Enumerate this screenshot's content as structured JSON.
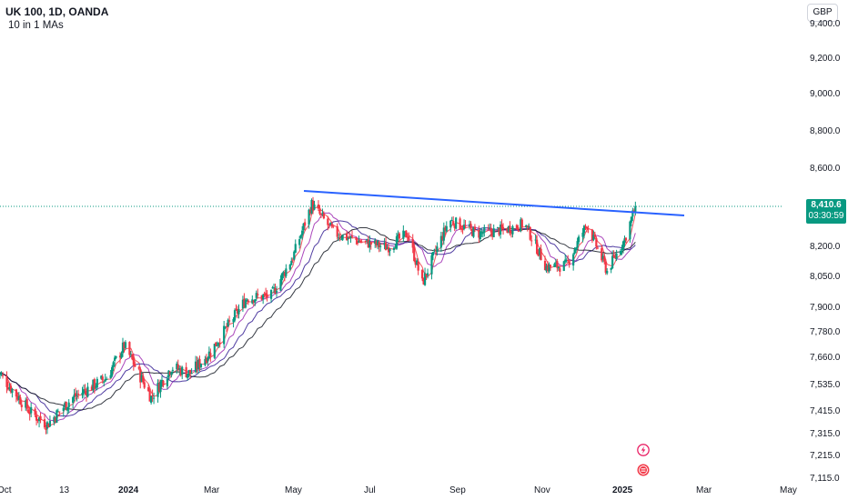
{
  "header": {
    "symbol": "UK 100, 1D, OANDA",
    "indicator": "10 in 1 MAs",
    "currency": "GBP"
  },
  "price_label": {
    "price": "8,410.6",
    "countdown": "03:30:59"
  },
  "colors": {
    "up": "#089981",
    "down": "#f23645",
    "trendline": "#2962ff",
    "ma_fast": "#f23645",
    "ma_mid": "#9c27b0",
    "ma_slow": "#311b92",
    "ma_long": "#131722"
  },
  "icons": [
    "lightning-event-icon",
    "flag-event-icon"
  ],
  "chart_data": {
    "type": "candlestick",
    "y_axis_labels": [
      "9,400.0",
      "9,200.0",
      "9,000.0",
      "8,800.0",
      "8,600.0",
      "8,410.6",
      "8,200.0",
      "8,050.0",
      "7,900.0",
      "7,780.0",
      "7,660.0",
      "7,535.0",
      "7,415.0",
      "7,315.0",
      "7,215.0",
      "7,115.0"
    ],
    "x_axis_labels": [
      "Oct",
      "13",
      "2024",
      "Mar",
      "May",
      "Jul",
      "Sep",
      "Nov",
      "2025",
      "Mar",
      "May"
    ],
    "ylim": [
      7115,
      9400
    ],
    "y_scale": "log",
    "last_close": 8410.6,
    "approx_closes": [
      {
        "date": "2023-09-25",
        "close": 7600
      },
      {
        "date": "2023-10-20",
        "close": 7410
      },
      {
        "date": "2023-11-01",
        "close": 7360
      },
      {
        "date": "2023-11-20",
        "close": 7480
      },
      {
        "date": "2023-12-15",
        "close": 7570
      },
      {
        "date": "2023-12-28",
        "close": 7720
      },
      {
        "date": "2024-01-17",
        "close": 7480
      },
      {
        "date": "2024-02-01",
        "close": 7620
      },
      {
        "date": "2024-02-15",
        "close": 7590
      },
      {
        "date": "2024-03-01",
        "close": 7690
      },
      {
        "date": "2024-03-28",
        "close": 7950
      },
      {
        "date": "2024-04-15",
        "close": 7960
      },
      {
        "date": "2024-05-01",
        "close": 8150
      },
      {
        "date": "2024-05-15",
        "close": 8420
      },
      {
        "date": "2024-06-01",
        "close": 8270
      },
      {
        "date": "2024-06-20",
        "close": 8230
      },
      {
        "date": "2024-07-10",
        "close": 8200
      },
      {
        "date": "2024-07-25",
        "close": 8270
      },
      {
        "date": "2024-08-05",
        "close": 8020
      },
      {
        "date": "2024-08-25",
        "close": 8340
      },
      {
        "date": "2024-09-15",
        "close": 8270
      },
      {
        "date": "2024-10-05",
        "close": 8290
      },
      {
        "date": "2024-10-20",
        "close": 8320
      },
      {
        "date": "2024-11-05",
        "close": 8100
      },
      {
        "date": "2024-11-20",
        "close": 8110
      },
      {
        "date": "2024-12-05",
        "close": 8320
      },
      {
        "date": "2024-12-20",
        "close": 8080
      },
      {
        "date": "2025-01-02",
        "close": 8240
      },
      {
        "date": "2025-01-10",
        "close": 8410.6
      }
    ],
    "trendline": {
      "start": {
        "date": "2024-05-15",
        "price": 8470
      },
      "end": {
        "date": "2025-02-24",
        "price": 8360
      }
    }
  }
}
